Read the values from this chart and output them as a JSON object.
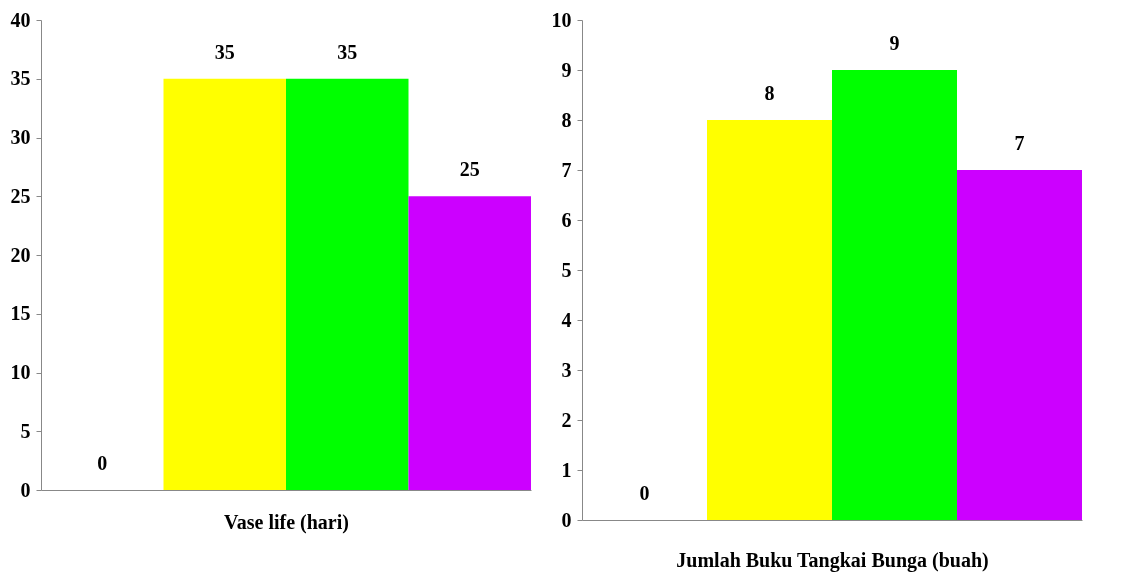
{
  "chart_data": [
    {
      "type": "bar",
      "xlabel": "Vase life (hari)",
      "categories": [
        null,
        null,
        null,
        null
      ],
      "values": [
        0,
        35,
        35,
        25
      ],
      "colors": [
        "#4f81bd",
        "#ffff00",
        "#00ff00",
        "#cc00ff"
      ],
      "ylim": [
        0,
        40
      ],
      "yticks": [
        0,
        5,
        10,
        15,
        20,
        25,
        30,
        35,
        40
      ],
      "data_labels": true,
      "tick_labels": "y",
      "grid": false
    },
    {
      "type": "bar",
      "xlabel": "Jumlah Buku Tangkai Bunga (buah)",
      "categories": [
        null,
        null,
        null,
        null
      ],
      "values": [
        0,
        8,
        9,
        7
      ],
      "colors": [
        "#4f81bd",
        "#ffff00",
        "#00ff00",
        "#cc00ff"
      ],
      "ylim": [
        0,
        10
      ],
      "yticks": [
        0,
        1,
        2,
        3,
        4,
        5,
        6,
        7,
        8,
        9,
        10
      ],
      "data_labels": true,
      "tick_labels": "y",
      "grid": false
    }
  ]
}
